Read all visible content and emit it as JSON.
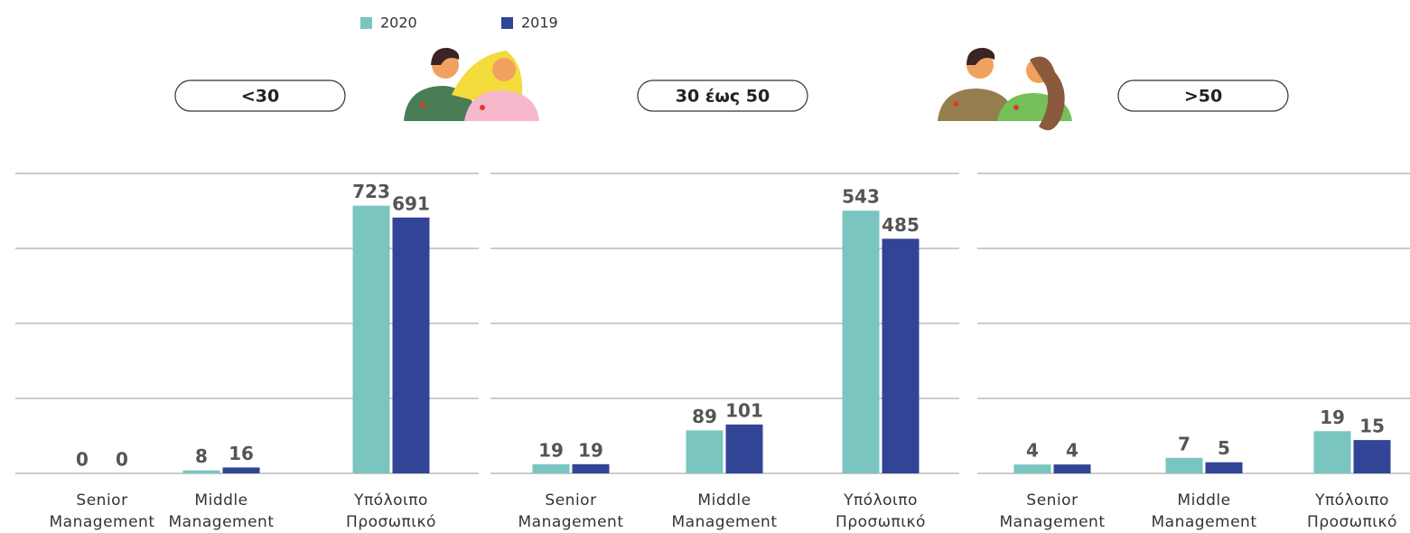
{
  "chart_data": [
    {
      "type": "bar",
      "title": "<30",
      "categories": [
        "Senior Management",
        "Middle Management",
        "Υπόλοιπο Προσωπικό"
      ],
      "series": [
        {
          "name": "2020",
          "color": "#7ac5c0",
          "values": [
            0,
            8,
            723
          ]
        },
        {
          "name": "2019",
          "color": "#324496",
          "values": [
            0,
            16,
            691
          ]
        }
      ],
      "ylim": [
        0,
        810
      ],
      "yticks": [
        0,
        202.5,
        405,
        607.5,
        810
      ],
      "grid": true
    },
    {
      "type": "bar",
      "title": "30 έως 50",
      "categories": [
        "Senior Management",
        "Middle Management",
        "Υπόλοιπο Προσωπικό"
      ],
      "series": [
        {
          "name": "2020",
          "color": "#7ac5c0",
          "values": [
            19,
            89,
            543
          ]
        },
        {
          "name": "2019",
          "color": "#324496",
          "values": [
            19,
            101,
            485
          ]
        }
      ],
      "ylim": [
        0,
        620
      ],
      "yticks": [
        0,
        155,
        310,
        465,
        620
      ],
      "grid": true
    },
    {
      "type": "bar",
      "title": ">50",
      "categories": [
        "Senior Management",
        "Middle Management",
        "Υπόλοιπο Προσωπικό"
      ],
      "series": [
        {
          "name": "2020",
          "color": "#7ac5c0",
          "values": [
            4,
            7,
            19
          ]
        },
        {
          "name": "2019",
          "color": "#324496",
          "values": [
            4,
            5,
            15
          ]
        }
      ],
      "ylim": [
        0,
        135
      ],
      "yticks": [
        0,
        33.75,
        67.5,
        101.25,
        135
      ],
      "grid": true
    }
  ]
}
